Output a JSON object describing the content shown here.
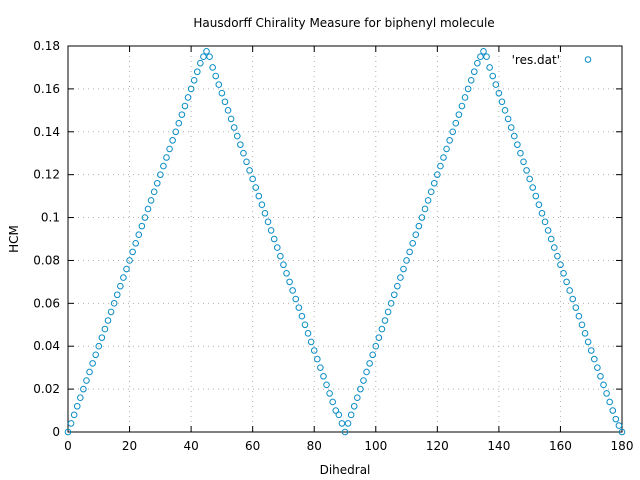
{
  "chart_data": {
    "type": "scatter",
    "title": "Hausdorff Chirality Measure for biphenyl molecule",
    "xlabel": "Dihedral",
    "ylabel": "HCM",
    "xlim": [
      0,
      180
    ],
    "ylim": [
      0,
      0.18
    ],
    "x_ticks": [
      "0",
      "20",
      "40",
      "60",
      "80",
      "100",
      "120",
      "140",
      "160",
      "180"
    ],
    "y_ticks": [
      "0",
      "0.02",
      "0.04",
      "0.06",
      "0.08",
      "0.1",
      "0.12",
      "0.14",
      "0.16",
      "0.18"
    ],
    "grid": true,
    "legend_position": "top-right",
    "series": [
      {
        "name": "'res.dat'",
        "color": "#0a8dc4",
        "marker": "open-circle",
        "x": [
          0,
          1,
          2,
          3,
          4,
          5,
          6,
          7,
          8,
          9,
          10,
          11,
          12,
          13,
          14,
          15,
          16,
          17,
          18,
          19,
          20,
          21,
          22,
          23,
          24,
          25,
          26,
          27,
          28,
          29,
          30,
          31,
          32,
          33,
          34,
          35,
          36,
          37,
          38,
          39,
          40,
          41,
          42,
          43,
          44,
          45,
          46,
          47,
          48,
          49,
          50,
          51,
          52,
          53,
          54,
          55,
          56,
          57,
          58,
          59,
          60,
          61,
          62,
          63,
          64,
          65,
          66,
          67,
          68,
          69,
          70,
          71,
          72,
          73,
          74,
          75,
          76,
          77,
          78,
          79,
          80,
          81,
          82,
          83,
          84,
          85,
          86,
          87,
          88,
          89,
          90,
          91,
          92,
          93,
          94,
          95,
          96,
          97,
          98,
          99,
          100,
          101,
          102,
          103,
          104,
          105,
          106,
          107,
          108,
          109,
          110,
          111,
          112,
          113,
          114,
          115,
          116,
          117,
          118,
          119,
          120,
          121,
          122,
          123,
          124,
          125,
          126,
          127,
          128,
          129,
          130,
          131,
          132,
          133,
          134,
          135,
          136,
          137,
          138,
          139,
          140,
          141,
          142,
          143,
          144,
          145,
          146,
          147,
          148,
          149,
          150,
          151,
          152,
          153,
          154,
          155,
          156,
          157,
          158,
          159,
          160,
          161,
          162,
          163,
          164,
          165,
          166,
          167,
          168,
          169,
          170,
          171,
          172,
          173,
          174,
          175,
          176,
          177,
          178,
          179,
          180
        ],
        "y": [
          0.0,
          0.004,
          0.008,
          0.012,
          0.016,
          0.02,
          0.024,
          0.028,
          0.032,
          0.036,
          0.04,
          0.044,
          0.048,
          0.052,
          0.056,
          0.06,
          0.064,
          0.068,
          0.072,
          0.076,
          0.08,
          0.084,
          0.088,
          0.092,
          0.096,
          0.1,
          0.104,
          0.108,
          0.112,
          0.116,
          0.12,
          0.124,
          0.128,
          0.132,
          0.136,
          0.14,
          0.144,
          0.148,
          0.152,
          0.156,
          0.16,
          0.164,
          0.168,
          0.172,
          0.175,
          0.1775,
          0.175,
          0.17,
          0.166,
          0.162,
          0.158,
          0.154,
          0.15,
          0.146,
          0.142,
          0.138,
          0.134,
          0.13,
          0.126,
          0.122,
          0.118,
          0.114,
          0.11,
          0.106,
          0.102,
          0.098,
          0.094,
          0.09,
          0.086,
          0.082,
          0.078,
          0.074,
          0.07,
          0.066,
          0.062,
          0.058,
          0.054,
          0.05,
          0.046,
          0.042,
          0.038,
          0.034,
          0.03,
          0.026,
          0.022,
          0.018,
          0.014,
          0.01,
          0.008,
          0.004,
          0.0,
          0.004,
          0.008,
          0.012,
          0.016,
          0.02,
          0.024,
          0.028,
          0.032,
          0.036,
          0.04,
          0.044,
          0.048,
          0.052,
          0.056,
          0.06,
          0.064,
          0.068,
          0.072,
          0.076,
          0.08,
          0.084,
          0.088,
          0.092,
          0.096,
          0.1,
          0.104,
          0.108,
          0.112,
          0.116,
          0.12,
          0.124,
          0.128,
          0.132,
          0.136,
          0.14,
          0.144,
          0.148,
          0.152,
          0.156,
          0.16,
          0.164,
          0.168,
          0.172,
          0.175,
          0.1775,
          0.175,
          0.17,
          0.166,
          0.162,
          0.158,
          0.154,
          0.15,
          0.146,
          0.142,
          0.138,
          0.134,
          0.13,
          0.126,
          0.122,
          0.118,
          0.114,
          0.11,
          0.106,
          0.102,
          0.098,
          0.094,
          0.09,
          0.086,
          0.082,
          0.078,
          0.074,
          0.07,
          0.066,
          0.062,
          0.058,
          0.054,
          0.05,
          0.046,
          0.042,
          0.038,
          0.034,
          0.03,
          0.026,
          0.022,
          0.018,
          0.014,
          0.01,
          0.006,
          0.003,
          0.0
        ]
      }
    ]
  }
}
